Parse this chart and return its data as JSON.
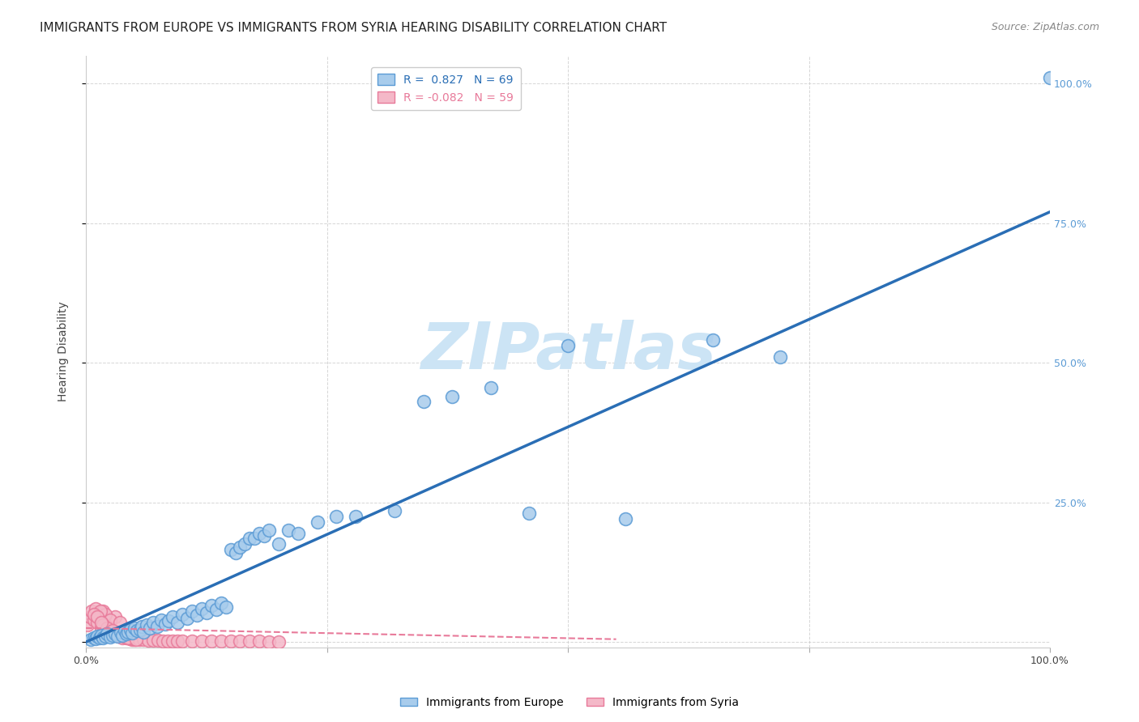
{
  "title": "IMMIGRANTS FROM EUROPE VS IMMIGRANTS FROM SYRIA HEARING DISABILITY CORRELATION CHART",
  "source": "Source: ZipAtlas.com",
  "ylabel": "Hearing Disability",
  "xlim": [
    0,
    1.0
  ],
  "ylim": [
    -0.01,
    1.05
  ],
  "xtick_labels": [
    "0.0%",
    "",
    "",
    "",
    "100.0%"
  ],
  "xtick_vals": [
    0.0,
    0.25,
    0.5,
    0.75,
    1.0
  ],
  "europe_color": "#a8ccec",
  "europe_edge": "#5b9bd5",
  "syria_color": "#f4b8c8",
  "syria_edge": "#e87a9a",
  "europe_R": 0.827,
  "europe_N": 69,
  "syria_R": -0.082,
  "syria_N": 59,
  "europe_scatter_x": [
    0.005,
    0.008,
    0.01,
    0.012,
    0.014,
    0.016,
    0.018,
    0.02,
    0.022,
    0.025,
    0.028,
    0.03,
    0.033,
    0.036,
    0.038,
    0.04,
    0.042,
    0.044,
    0.046,
    0.048,
    0.05,
    0.053,
    0.056,
    0.058,
    0.06,
    0.063,
    0.066,
    0.07,
    0.074,
    0.078,
    0.082,
    0.086,
    0.09,
    0.095,
    0.1,
    0.105,
    0.11,
    0.115,
    0.12,
    0.125,
    0.13,
    0.135,
    0.14,
    0.145,
    0.15,
    0.155,
    0.16,
    0.165,
    0.17,
    0.175,
    0.18,
    0.185,
    0.19,
    0.2,
    0.21,
    0.22,
    0.24,
    0.26,
    0.28,
    0.32,
    0.35,
    0.38,
    0.42,
    0.46,
    0.5,
    0.56,
    0.65,
    0.72,
    1.0
  ],
  "europe_scatter_y": [
    0.005,
    0.008,
    0.006,
    0.01,
    0.007,
    0.012,
    0.008,
    0.01,
    0.015,
    0.009,
    0.012,
    0.015,
    0.01,
    0.018,
    0.012,
    0.02,
    0.015,
    0.018,
    0.022,
    0.016,
    0.025,
    0.02,
    0.022,
    0.028,
    0.018,
    0.03,
    0.025,
    0.035,
    0.028,
    0.04,
    0.032,
    0.038,
    0.045,
    0.035,
    0.05,
    0.042,
    0.055,
    0.048,
    0.06,
    0.052,
    0.065,
    0.058,
    0.07,
    0.062,
    0.165,
    0.16,
    0.17,
    0.175,
    0.185,
    0.185,
    0.195,
    0.19,
    0.2,
    0.175,
    0.2,
    0.195,
    0.215,
    0.225,
    0.225,
    0.235,
    0.43,
    0.44,
    0.455,
    0.23,
    0.53,
    0.22,
    0.54,
    0.51,
    1.01
  ],
  "syria_scatter_x": [
    0.002,
    0.004,
    0.006,
    0.008,
    0.01,
    0.012,
    0.014,
    0.016,
    0.018,
    0.02,
    0.022,
    0.024,
    0.026,
    0.028,
    0.03,
    0.032,
    0.034,
    0.036,
    0.038,
    0.04,
    0.042,
    0.044,
    0.046,
    0.048,
    0.05,
    0.055,
    0.06,
    0.065,
    0.07,
    0.075,
    0.08,
    0.085,
    0.09,
    0.095,
    0.1,
    0.11,
    0.12,
    0.13,
    0.14,
    0.15,
    0.16,
    0.17,
    0.18,
    0.19,
    0.2,
    0.03,
    0.02,
    0.025,
    0.015,
    0.035,
    0.008,
    0.012,
    0.018,
    0.022,
    0.016,
    0.028,
    0.038,
    0.044,
    0.052
  ],
  "syria_scatter_y": [
    0.03,
    0.045,
    0.055,
    0.04,
    0.06,
    0.035,
    0.05,
    0.025,
    0.055,
    0.03,
    0.02,
    0.025,
    0.015,
    0.02,
    0.015,
    0.012,
    0.01,
    0.012,
    0.008,
    0.01,
    0.007,
    0.008,
    0.006,
    0.005,
    0.005,
    0.004,
    0.004,
    0.003,
    0.003,
    0.003,
    0.002,
    0.002,
    0.002,
    0.001,
    0.002,
    0.001,
    0.001,
    0.001,
    0.001,
    0.001,
    0.001,
    0.001,
    0.001,
    0.0,
    0.0,
    0.045,
    0.05,
    0.04,
    0.055,
    0.035,
    0.05,
    0.045,
    0.03,
    0.025,
    0.035,
    0.02,
    0.012,
    0.008,
    0.005
  ],
  "europe_line_x": [
    0.0,
    1.0
  ],
  "europe_line_y": [
    0.0,
    0.77
  ],
  "syria_line_x": [
    0.0,
    0.55
  ],
  "syria_line_y": [
    0.025,
    0.005
  ],
  "background_color": "#ffffff",
  "grid_color": "#cccccc",
  "title_fontsize": 11,
  "axis_label_fontsize": 10,
  "tick_fontsize": 9,
  "right_ytick_color": "#5b9bd5",
  "right_ytick_labels": [
    "25.0%",
    "50.0%",
    "75.0%",
    "100.0%"
  ],
  "right_ytick_vals": [
    0.25,
    0.5,
    0.75,
    1.0
  ],
  "watermark_color": "#cce4f5"
}
